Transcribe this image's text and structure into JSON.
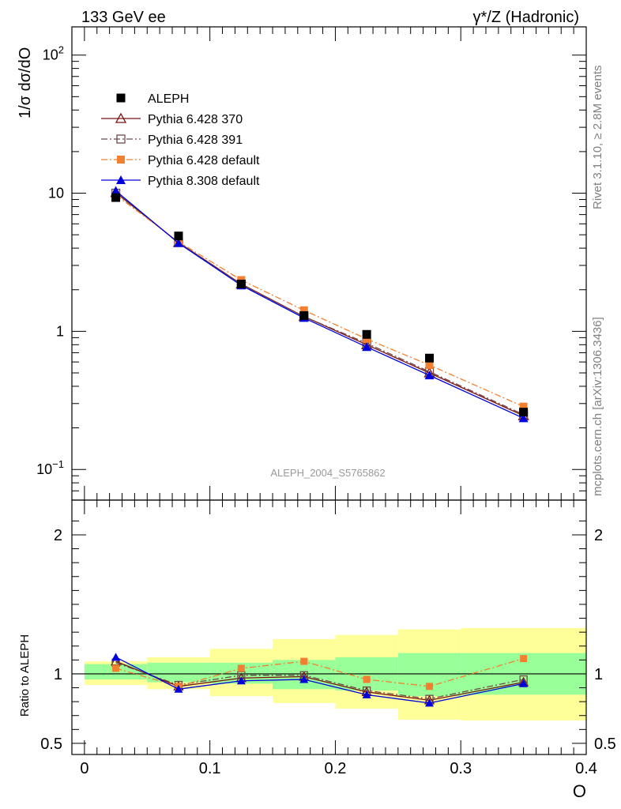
{
  "header": {
    "left_title": "133 GeV ee",
    "right_title": "γ*/Z (Hadronic)"
  },
  "side_text": {
    "rivet": "Rivet 3.1.10, ≥ 2.8M events",
    "mcplots": "mcplots.cern.ch [arXiv:1306.3436]"
  },
  "watermark": "ALEPH_2004_S5765862",
  "chart_data": [
    {
      "type": "scatter",
      "title": "",
      "ylabel": "1/σ  dσ/dO",
      "xlabel": "",
      "yscale": "log",
      "ylim": [
        0.06,
        160
      ],
      "xlim": [
        -0.01,
        0.4
      ],
      "ytick_labels": [
        "10^−1",
        "1",
        "10",
        "10^2"
      ],
      "grid": false,
      "legend": "top-left",
      "bin_centers": [
        0.025,
        0.075,
        0.125,
        0.175,
        0.225,
        0.275,
        0.35
      ],
      "series": [
        {
          "name": "ALEPH",
          "color": "#000000",
          "marker": "filled-square",
          "line": "none",
          "values": [
            9.3,
            4.9,
            2.2,
            1.3,
            0.95,
            0.64,
            0.26
          ]
        },
        {
          "name": "Pythia 6.428 370",
          "color": "#7a1010",
          "marker": "open-triangle",
          "line": "solid",
          "values": [
            10.1,
            4.4,
            2.2,
            1.28,
            0.8,
            0.5,
            0.245
          ]
        },
        {
          "name": "Pythia 6.428 391",
          "color": "#6e4a4a",
          "marker": "open-square",
          "line": "dashdot",
          "values": [
            10.0,
            4.4,
            2.18,
            1.28,
            0.82,
            0.51,
            0.25
          ]
        },
        {
          "name": "Pythia 6.428 default",
          "color": "#f28030",
          "marker": "filled-square",
          "line": "dashdot",
          "values": [
            9.7,
            4.45,
            2.35,
            1.42,
            0.88,
            0.57,
            0.285
          ]
        },
        {
          "name": "Pythia 8.308 default",
          "color": "#0000dd",
          "marker": "filled-triangle",
          "line": "solid",
          "values": [
            10.4,
            4.35,
            2.15,
            1.25,
            0.77,
            0.48,
            0.235
          ]
        }
      ]
    },
    {
      "type": "line",
      "title": "",
      "ylabel": "Ratio to ALEPH",
      "xlabel": "O",
      "ylim": [
        0.42,
        2.25
      ],
      "xlim": [
        -0.01,
        0.4
      ],
      "ytick_labels": [
        "0.5",
        "1",
        "2"
      ],
      "xtick_labels": [
        "0",
        "0.1",
        "0.2",
        "0.3",
        "0.4"
      ],
      "x_ticks": [
        0,
        0.1,
        0.2,
        0.3,
        0.4
      ],
      "bin_edges": [
        0.0,
        0.05,
        0.1,
        0.15,
        0.2,
        0.25,
        0.3,
        0.4
      ],
      "bin_centers": [
        0.025,
        0.075,
        0.125,
        0.175,
        0.225,
        0.275,
        0.35
      ],
      "band_stat": {
        "low": [
          0.96,
          0.94,
          0.93,
          0.89,
          0.88,
          0.84,
          0.85
        ],
        "high": [
          1.07,
          1.08,
          1.08,
          1.1,
          1.12,
          1.15,
          1.15
        ]
      },
      "band_total": {
        "low": [
          0.92,
          0.89,
          0.84,
          0.79,
          0.75,
          0.67,
          0.665
        ],
        "high": [
          1.09,
          1.12,
          1.18,
          1.25,
          1.28,
          1.32,
          1.33
        ]
      },
      "band_colors": {
        "total": "#ffff99",
        "stat": "#99ff99"
      },
      "series": [
        {
          "name": "Pythia 6.428 370",
          "color": "#7a1010",
          "marker": "open-triangle",
          "line": "solid",
          "values": [
            1.09,
            0.91,
            0.97,
            0.98,
            0.87,
            0.81,
            0.94
          ]
        },
        {
          "name": "Pythia 6.428 391",
          "color": "#6e4a4a",
          "marker": "open-square",
          "line": "dashdot",
          "values": [
            1.08,
            0.92,
            0.99,
            0.99,
            0.88,
            0.82,
            0.96
          ]
        },
        {
          "name": "Pythia 6.428 default",
          "color": "#f28030",
          "marker": "filled-square",
          "line": "dashdot",
          "values": [
            1.04,
            0.91,
            1.04,
            1.09,
            0.96,
            0.91,
            1.11
          ]
        },
        {
          "name": "Pythia 8.308 default",
          "color": "#0000dd",
          "marker": "filled-triangle",
          "line": "solid",
          "values": [
            1.12,
            0.89,
            0.95,
            0.96,
            0.85,
            0.79,
            0.93
          ]
        }
      ]
    }
  ]
}
